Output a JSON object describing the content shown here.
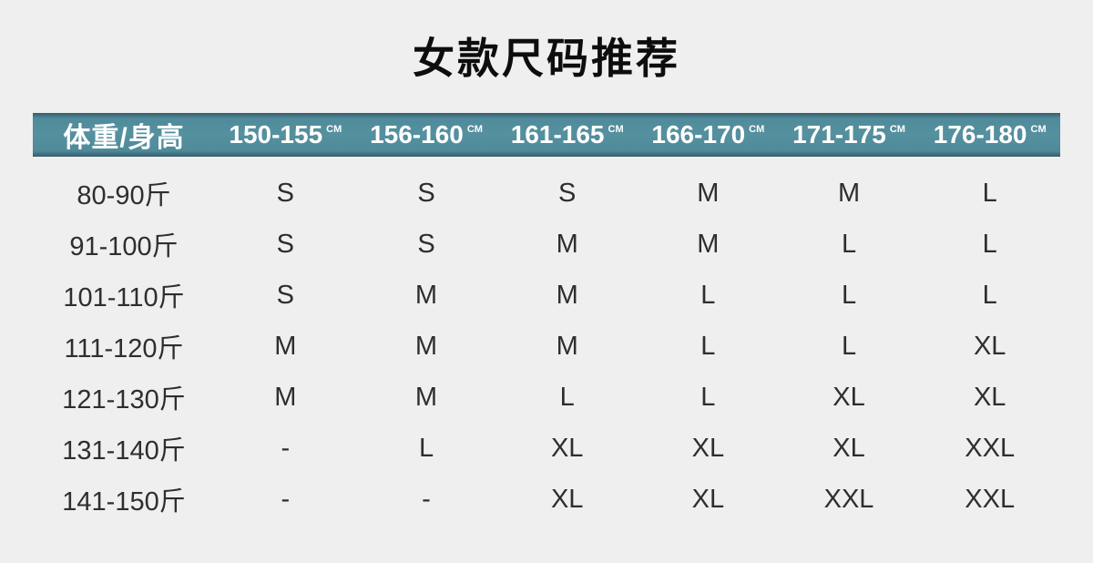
{
  "title": "女款尺码推荐",
  "colors": {
    "page_bg": "#efefef",
    "header_bg": "#4f8b9a",
    "header_bg_light": "#55909f",
    "header_edge": "#375c6b",
    "header_text": "#ffffff",
    "title_color": "#0d0d0d",
    "body_text": "#2e2e2e"
  },
  "table": {
    "unit": "CM",
    "header": {
      "first": "体重/身高",
      "ranges": [
        "150-155",
        "156-160",
        "161-165",
        "166-170",
        "171-175",
        "176-180"
      ]
    },
    "rows": [
      {
        "label": "80-90斤",
        "values": [
          "S",
          "S",
          "S",
          "M",
          "M",
          "L"
        ]
      },
      {
        "label": "91-100斤",
        "values": [
          "S",
          "S",
          "M",
          "M",
          "L",
          "L"
        ]
      },
      {
        "label": "101-110斤",
        "values": [
          "S",
          "M",
          "M",
          "L",
          "L",
          "L"
        ]
      },
      {
        "label": "111-120斤",
        "values": [
          "M",
          "M",
          "M",
          "L",
          "L",
          "XL"
        ]
      },
      {
        "label": "121-130斤",
        "values": [
          "M",
          "M",
          "L",
          "L",
          "XL",
          "XL"
        ]
      },
      {
        "label": "131-140斤",
        "values": [
          "-",
          "L",
          "XL",
          "XL",
          "XL",
          "XXL"
        ]
      },
      {
        "label": "141-150斤",
        "values": [
          "-",
          "-",
          "XL",
          "XL",
          "XXL",
          "XXL"
        ]
      }
    ]
  },
  "chart_data": {
    "type": "table",
    "title": "女款尺码推荐",
    "columns": [
      "体重/身高",
      "150-155 CM",
      "156-160 CM",
      "161-165 CM",
      "166-170 CM",
      "171-175 CM",
      "176-180 CM"
    ],
    "rows": [
      [
        "80-90斤",
        "S",
        "S",
        "S",
        "M",
        "M",
        "L"
      ],
      [
        "91-100斤",
        "S",
        "S",
        "M",
        "M",
        "L",
        "L"
      ],
      [
        "101-110斤",
        "S",
        "M",
        "M",
        "L",
        "L",
        "L"
      ],
      [
        "111-120斤",
        "M",
        "M",
        "M",
        "L",
        "L",
        "XL"
      ],
      [
        "121-130斤",
        "M",
        "M",
        "L",
        "L",
        "XL",
        "XL"
      ],
      [
        "131-140斤",
        "-",
        "L",
        "XL",
        "XL",
        "XL",
        "XXL"
      ],
      [
        "141-150斤",
        "-",
        "-",
        "XL",
        "XL",
        "XXL",
        "XXL"
      ]
    ],
    "layout": {
      "header_background": "#4f8b9a",
      "header_text_color": "#ffffff",
      "grid": false
    }
  }
}
